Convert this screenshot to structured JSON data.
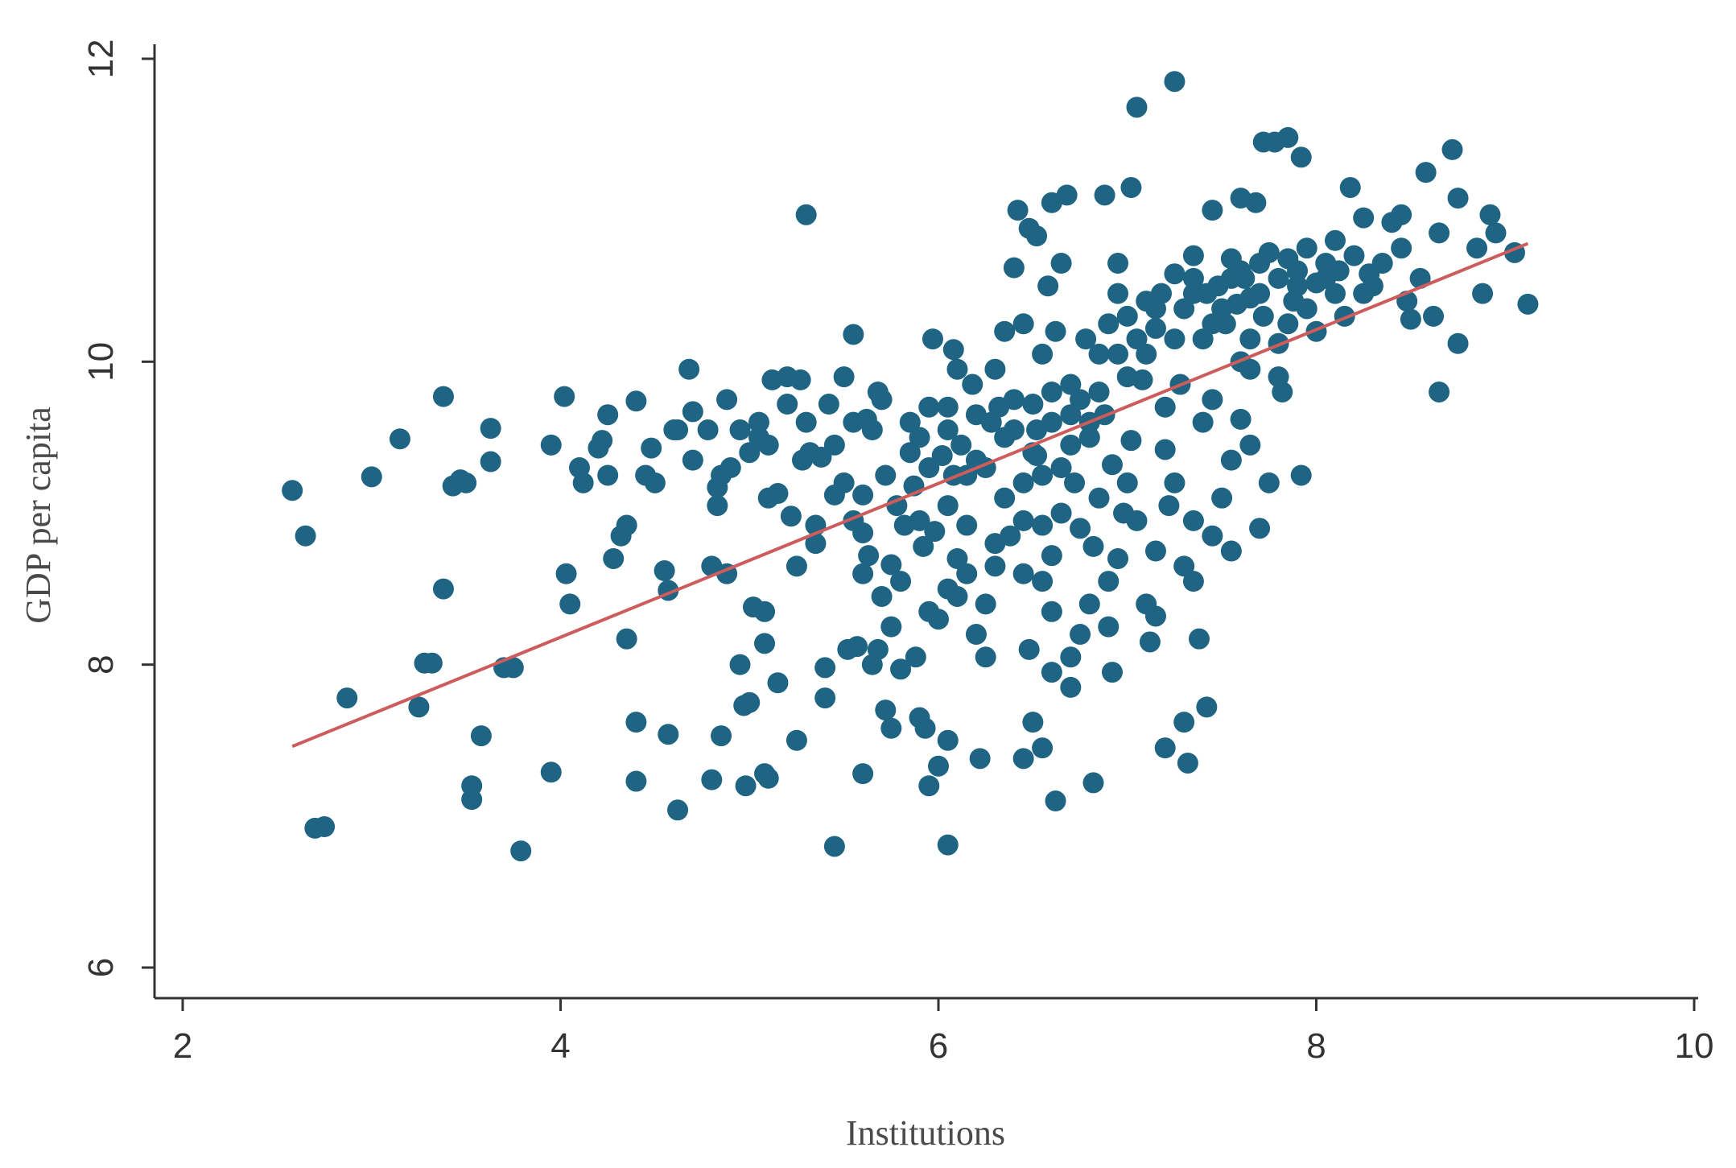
{
  "chart_data": {
    "type": "scatter",
    "title": "",
    "xlabel": "Institutions",
    "ylabel": "GDP per capita",
    "xlim": [
      2,
      10
    ],
    "ylim": [
      6,
      12
    ],
    "xticks": [
      "2",
      "4",
      "6",
      "8",
      "10"
    ],
    "yticks": [
      "6",
      "8",
      "10",
      "12"
    ],
    "grid": false,
    "legend": "none",
    "colors": {
      "points": "#1f6482",
      "fit_line": "#cd5c5c",
      "axis": "#333333"
    },
    "fit_line": {
      "x": [
        2.58,
        9.12
      ],
      "y": [
        7.46,
        10.78
      ]
    },
    "points": [
      [
        2.58,
        9.15
      ],
      [
        2.65,
        8.85
      ],
      [
        2.7,
        6.92
      ],
      [
        2.75,
        6.93
      ],
      [
        2.87,
        7.78
      ],
      [
        3.0,
        9.24
      ],
      [
        3.15,
        9.49
      ],
      [
        3.25,
        7.72
      ],
      [
        3.28,
        8.01
      ],
      [
        3.32,
        8.01
      ],
      [
        3.38,
        9.77
      ],
      [
        3.38,
        8.5
      ],
      [
        3.43,
        9.18
      ],
      [
        3.47,
        9.22
      ],
      [
        3.5,
        9.2
      ],
      [
        3.53,
        7.2
      ],
      [
        3.53,
        7.11
      ],
      [
        3.58,
        7.53
      ],
      [
        3.63,
        9.56
      ],
      [
        3.63,
        9.34
      ],
      [
        3.7,
        7.98
      ],
      [
        3.75,
        7.98
      ],
      [
        3.79,
        6.77
      ],
      [
        3.95,
        9.45
      ],
      [
        3.95,
        7.29
      ],
      [
        4.02,
        9.77
      ],
      [
        4.03,
        8.6
      ],
      [
        4.05,
        8.4
      ],
      [
        4.1,
        9.3
      ],
      [
        4.12,
        9.2
      ],
      [
        4.2,
        9.43
      ],
      [
        4.22,
        9.48
      ],
      [
        4.25,
        9.65
      ],
      [
        4.25,
        9.25
      ],
      [
        4.28,
        8.7
      ],
      [
        4.32,
        8.85
      ],
      [
        4.35,
        8.92
      ],
      [
        4.35,
        8.17
      ],
      [
        4.4,
        9.74
      ],
      [
        4.4,
        7.62
      ],
      [
        4.4,
        7.23
      ],
      [
        4.45,
        9.25
      ],
      [
        4.48,
        9.43
      ],
      [
        4.5,
        9.2
      ],
      [
        4.55,
        8.62
      ],
      [
        4.57,
        8.49
      ],
      [
        4.57,
        7.54
      ],
      [
        4.62,
        9.55
      ],
      [
        4.62,
        7.04
      ],
      [
        4.68,
        9.95
      ],
      [
        4.7,
        9.67
      ],
      [
        4.7,
        9.35
      ],
      [
        4.78,
        9.55
      ],
      [
        4.8,
        8.65
      ],
      [
        4.8,
        7.24
      ],
      [
        4.83,
        9.17
      ],
      [
        4.83,
        9.05
      ],
      [
        4.85,
        7.53
      ],
      [
        4.88,
        9.75
      ],
      [
        4.88,
        8.6
      ],
      [
        4.9,
        9.3
      ],
      [
        4.95,
        9.55
      ],
      [
        4.95,
        8.0
      ],
      [
        4.97,
        7.73
      ],
      [
        4.98,
        7.2
      ],
      [
        5.0,
        9.4
      ],
      [
        5.0,
        7.75
      ],
      [
        5.02,
        8.38
      ],
      [
        5.05,
        9.5
      ],
      [
        5.05,
        9.6
      ],
      [
        5.08,
        8.35
      ],
      [
        5.08,
        8.14
      ],
      [
        5.08,
        7.28
      ],
      [
        5.1,
        9.45
      ],
      [
        5.1,
        7.25
      ],
      [
        5.12,
        9.88
      ],
      [
        5.15,
        9.13
      ],
      [
        5.15,
        7.88
      ],
      [
        5.2,
        9.9
      ],
      [
        5.2,
        9.72
      ],
      [
        5.22,
        8.98
      ],
      [
        5.25,
        8.65
      ],
      [
        5.25,
        7.5
      ],
      [
        5.27,
        9.88
      ],
      [
        5.28,
        9.35
      ],
      [
        5.3,
        10.97
      ],
      [
        5.32,
        9.4
      ],
      [
        5.35,
        8.92
      ],
      [
        5.38,
        9.37
      ],
      [
        5.4,
        7.98
      ],
      [
        5.4,
        7.78
      ],
      [
        5.42,
        9.72
      ],
      [
        5.45,
        9.45
      ],
      [
        5.45,
        9.12
      ],
      [
        5.45,
        6.8
      ],
      [
        5.5,
        9.9
      ],
      [
        5.52,
        8.1
      ],
      [
        5.55,
        10.18
      ],
      [
        5.55,
        9.6
      ],
      [
        5.57,
        8.12
      ],
      [
        5.6,
        9.12
      ],
      [
        5.6,
        8.87
      ],
      [
        5.6,
        7.28
      ],
      [
        5.62,
        9.62
      ],
      [
        5.63,
        8.72
      ],
      [
        5.65,
        8.0
      ],
      [
        5.68,
        9.8
      ],
      [
        5.68,
        8.1
      ],
      [
        5.7,
        9.75
      ],
      [
        5.72,
        9.25
      ],
      [
        5.72,
        7.7
      ],
      [
        5.75,
        8.66
      ],
      [
        5.75,
        8.25
      ],
      [
        5.75,
        7.58
      ],
      [
        5.78,
        9.05
      ],
      [
        5.8,
        7.97
      ],
      [
        5.82,
        8.92
      ],
      [
        5.85,
        9.6
      ],
      [
        5.87,
        9.18
      ],
      [
        5.88,
        8.05
      ],
      [
        5.9,
        9.5
      ],
      [
        5.9,
        7.65
      ],
      [
        5.92,
        8.78
      ],
      [
        5.93,
        7.58
      ],
      [
        5.95,
        9.3
      ],
      [
        5.95,
        8.35
      ],
      [
        5.95,
        7.2
      ],
      [
        5.97,
        10.15
      ],
      [
        5.98,
        8.88
      ],
      [
        6.0,
        7.33
      ],
      [
        6.02,
        9.38
      ],
      [
        6.05,
        9.7
      ],
      [
        6.05,
        8.5
      ],
      [
        6.05,
        7.5
      ],
      [
        6.05,
        6.81
      ],
      [
        6.08,
        10.08
      ],
      [
        6.08,
        9.25
      ],
      [
        6.1,
        9.95
      ],
      [
        6.1,
        8.7
      ],
      [
        6.12,
        9.45
      ],
      [
        6.15,
        9.25
      ],
      [
        6.15,
        8.92
      ],
      [
        6.18,
        9.85
      ],
      [
        6.2,
        9.65
      ],
      [
        6.2,
        8.2
      ],
      [
        6.22,
        7.38
      ],
      [
        6.25,
        9.3
      ],
      [
        6.25,
        8.05
      ],
      [
        6.28,
        9.6
      ],
      [
        6.3,
        9.95
      ],
      [
        6.3,
        8.8
      ],
      [
        6.32,
        9.7
      ],
      [
        6.35,
        10.2
      ],
      [
        6.35,
        9.5
      ],
      [
        6.38,
        8.85
      ],
      [
        6.4,
        10.62
      ],
      [
        6.4,
        9.75
      ],
      [
        6.42,
        11.0
      ],
      [
        6.45,
        9.2
      ],
      [
        6.45,
        8.6
      ],
      [
        6.45,
        7.38
      ],
      [
        6.48,
        10.88
      ],
      [
        6.48,
        8.1
      ],
      [
        6.5,
        9.72
      ],
      [
        6.5,
        7.62
      ],
      [
        6.52,
        10.83
      ],
      [
        6.52,
        9.55
      ],
      [
        6.52,
        9.38
      ],
      [
        6.55,
        8.92
      ],
      [
        6.55,
        8.55
      ],
      [
        6.58,
        10.5
      ],
      [
        6.6,
        11.05
      ],
      [
        6.6,
        9.6
      ],
      [
        6.6,
        8.72
      ],
      [
        6.62,
        10.2
      ],
      [
        6.62,
        7.1
      ],
      [
        6.65,
        10.65
      ],
      [
        6.65,
        9.3
      ],
      [
        6.68,
        11.1
      ],
      [
        6.7,
        9.85
      ],
      [
        6.7,
        9.45
      ],
      [
        6.7,
        7.85
      ],
      [
        6.72,
        9.2
      ],
      [
        6.75,
        9.75
      ],
      [
        6.75,
        8.2
      ],
      [
        6.78,
        10.15
      ],
      [
        6.8,
        9.5
      ],
      [
        6.82,
        8.78
      ],
      [
        6.82,
        7.22
      ],
      [
        6.85,
        9.8
      ],
      [
        6.88,
        11.1
      ],
      [
        6.88,
        9.65
      ],
      [
        6.9,
        8.55
      ],
      [
        6.92,
        9.32
      ],
      [
        6.92,
        7.95
      ],
      [
        6.95,
        10.65
      ],
      [
        6.95,
        10.05
      ],
      [
        6.98,
        9.0
      ],
      [
        7.0,
        10.3
      ],
      [
        7.02,
        9.48
      ],
      [
        7.02,
        11.15
      ],
      [
        7.05,
        10.15
      ],
      [
        7.05,
        11.68
      ],
      [
        7.08,
        9.88
      ],
      [
        7.1,
        10.4
      ],
      [
        7.12,
        8.15
      ],
      [
        7.15,
        10.22
      ],
      [
        7.15,
        8.32
      ],
      [
        7.18,
        10.45
      ],
      [
        7.2,
        9.42
      ],
      [
        7.2,
        7.45
      ],
      [
        7.22,
        9.05
      ],
      [
        7.25,
        11.85
      ],
      [
        7.25,
        10.58
      ],
      [
        7.28,
        9.85
      ],
      [
        7.3,
        10.35
      ],
      [
        7.3,
        7.62
      ],
      [
        7.32,
        7.35
      ],
      [
        7.35,
        10.7
      ],
      [
        7.35,
        8.95
      ],
      [
        7.38,
        8.17
      ],
      [
        7.4,
        10.15
      ],
      [
        7.42,
        10.45
      ],
      [
        7.42,
        7.72
      ],
      [
        7.45,
        11.0
      ],
      [
        7.45,
        9.75
      ],
      [
        7.48,
        10.5
      ],
      [
        7.5,
        9.1
      ],
      [
        7.52,
        10.25
      ],
      [
        7.55,
        10.68
      ],
      [
        7.55,
        8.75
      ],
      [
        7.58,
        10.38
      ],
      [
        7.6,
        11.08
      ],
      [
        7.6,
        9.62
      ],
      [
        7.62,
        10.55
      ],
      [
        7.65,
        10.42
      ],
      [
        7.65,
        9.95
      ],
      [
        7.68,
        11.05
      ],
      [
        7.7,
        10.65
      ],
      [
        7.7,
        8.9
      ],
      [
        7.72,
        11.45
      ],
      [
        7.72,
        10.3
      ],
      [
        7.75,
        10.72
      ],
      [
        7.75,
        9.2
      ],
      [
        7.78,
        11.45
      ],
      [
        7.8,
        10.55
      ],
      [
        7.8,
        10.12
      ],
      [
        7.82,
        9.8
      ],
      [
        7.85,
        11.48
      ],
      [
        7.85,
        10.68
      ],
      [
        7.88,
        10.4
      ],
      [
        7.9,
        10.6
      ],
      [
        7.92,
        11.35
      ],
      [
        7.92,
        9.25
      ],
      [
        7.95,
        10.75
      ],
      [
        8.0,
        10.52
      ],
      [
        8.05,
        10.65
      ],
      [
        8.1,
        10.45
      ],
      [
        8.12,
        10.6
      ],
      [
        8.15,
        10.3
      ],
      [
        8.18,
        11.15
      ],
      [
        8.2,
        10.7
      ],
      [
        8.25,
        10.95
      ],
      [
        8.28,
        10.58
      ],
      [
        8.35,
        10.65
      ],
      [
        8.4,
        10.92
      ],
      [
        8.45,
        10.97
      ],
      [
        8.48,
        10.4
      ],
      [
        8.5,
        10.28
      ],
      [
        8.55,
        10.55
      ],
      [
        8.58,
        11.25
      ],
      [
        8.62,
        10.3
      ],
      [
        8.65,
        10.85
      ],
      [
        8.65,
        9.8
      ],
      [
        8.72,
        11.4
      ],
      [
        8.75,
        11.08
      ],
      [
        8.75,
        10.12
      ],
      [
        8.85,
        10.75
      ],
      [
        8.88,
        10.45
      ],
      [
        8.92,
        10.97
      ],
      [
        8.95,
        10.85
      ],
      [
        9.05,
        10.72
      ],
      [
        9.12,
        10.38
      ],
      [
        6.05,
        9.05
      ],
      [
        6.15,
        8.6
      ],
      [
        6.25,
        8.4
      ],
      [
        6.35,
        9.1
      ],
      [
        6.55,
        9.25
      ],
      [
        6.65,
        9.0
      ],
      [
        6.75,
        8.9
      ],
      [
        6.85,
        9.1
      ],
      [
        6.95,
        8.7
      ],
      [
        7.05,
        8.95
      ],
      [
        7.15,
        8.75
      ],
      [
        7.25,
        9.2
      ],
      [
        7.35,
        8.55
      ],
      [
        7.45,
        8.85
      ],
      [
        7.55,
        9.35
      ],
      [
        7.65,
        9.45
      ],
      [
        5.9,
        8.95
      ],
      [
        5.8,
        8.55
      ],
      [
        6.0,
        8.3
      ],
      [
        6.1,
        8.45
      ],
      [
        6.3,
        8.65
      ],
      [
        6.45,
        8.95
      ],
      [
        6.6,
        8.35
      ],
      [
        6.8,
        8.4
      ],
      [
        7.0,
        9.2
      ],
      [
        7.2,
        9.7
      ],
      [
        7.4,
        9.6
      ],
      [
        7.6,
        10.0
      ],
      [
        7.8,
        9.9
      ],
      [
        8.0,
        10.2
      ],
      [
        8.1,
        10.8
      ],
      [
        8.3,
        10.5
      ],
      [
        8.45,
        10.75
      ],
      [
        7.95,
        10.35
      ],
      [
        7.55,
        10.55
      ],
      [
        7.45,
        10.25
      ],
      [
        7.35,
        10.55
      ],
      [
        7.65,
        10.15
      ],
      [
        7.85,
        10.25
      ],
      [
        8.25,
        10.45
      ],
      [
        6.9,
        10.25
      ],
      [
        7.0,
        9.9
      ],
      [
        7.1,
        10.05
      ],
      [
        6.8,
        9.6
      ],
      [
        6.6,
        9.8
      ],
      [
        6.5,
        9.4
      ],
      [
        6.4,
        9.55
      ],
      [
        6.2,
        9.35
      ],
      [
        6.05,
        9.55
      ],
      [
        5.95,
        9.7
      ],
      [
        6.85,
        10.05
      ],
      [
        7.25,
        10.15
      ],
      [
        7.5,
        10.35
      ],
      [
        7.7,
        10.45
      ],
      [
        7.9,
        10.5
      ],
      [
        8.05,
        10.55
      ],
      [
        6.95,
        10.45
      ],
      [
        7.15,
        10.35
      ],
      [
        7.35,
        10.45
      ],
      [
        7.6,
        10.6
      ],
      [
        5.65,
        9.55
      ],
      [
        5.5,
        9.2
      ],
      [
        5.3,
        9.6
      ],
      [
        5.85,
        9.4
      ],
      [
        6.7,
        9.65
      ],
      [
        6.55,
        10.05
      ],
      [
        6.45,
        10.25
      ],
      [
        6.9,
        8.25
      ],
      [
        7.1,
        8.4
      ],
      [
        7.3,
        8.65
      ],
      [
        6.7,
        8.05
      ],
      [
        6.6,
        7.95
      ],
      [
        6.55,
        7.45
      ],
      [
        5.7,
        8.45
      ],
      [
        5.55,
        8.95
      ],
      [
        4.6,
        9.55
      ],
      [
        4.85,
        9.25
      ],
      [
        5.1,
        9.1
      ],
      [
        5.35,
        8.8
      ],
      [
        5.6,
        8.6
      ]
    ]
  }
}
